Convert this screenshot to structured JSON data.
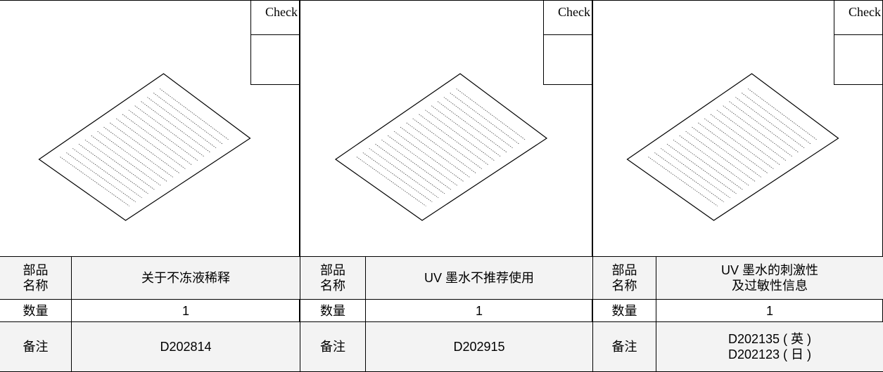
{
  "cards": [
    {
      "check": "Check",
      "name_label": [
        "部品",
        "名称"
      ],
      "name": [
        "关于不冻液稀释"
      ],
      "qty_label": "数量",
      "qty": 1,
      "remark_label": "备注",
      "remarks": [
        "D202814"
      ]
    },
    {
      "check": "Check",
      "name_label": [
        "部品",
        "名称"
      ],
      "name": [
        "UV 墨水不推荐使用"
      ],
      "qty_label": "数量",
      "qty": 1,
      "remark_label": "备注",
      "remarks": [
        "D202915"
      ]
    },
    {
      "check": "Check",
      "name_label": [
        "部品",
        "名称"
      ],
      "name": [
        "UV 墨水的刺激性",
        "及过敏性信息"
      ],
      "qty_label": "数量",
      "qty": 1,
      "remark_label": "备注",
      "remarks": [
        "D202135 ( 英 )",
        "D202123 ( 日 )"
      ]
    }
  ]
}
